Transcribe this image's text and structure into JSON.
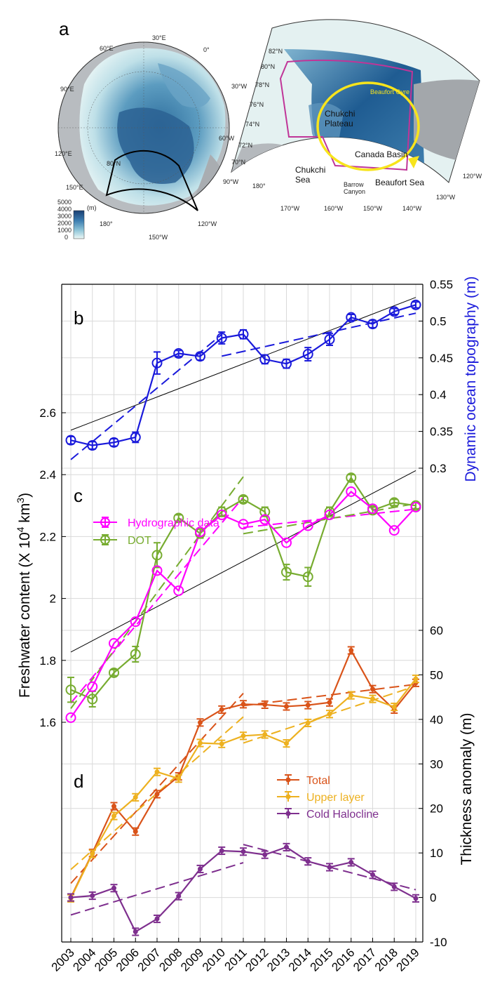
{
  "colors": {
    "blue": "#1a1adb",
    "magenta": "#ff00ff",
    "green": "#77ac30",
    "orange": "#d95319",
    "yellow": "#edb120",
    "purple": "#7e2f8e",
    "grid": "#d9d9d9"
  },
  "panel_a": {
    "letter": "a",
    "colorbar": {
      "unit": "(m)",
      "ticks": [
        "5000",
        "4000",
        "3000",
        "2000",
        "1000",
        "0"
      ]
    },
    "polar_labels": [
      "30°E",
      "60°E",
      "0°",
      "90°E",
      "30°W",
      "120°E",
      "60°W",
      "80°N",
      "150°E",
      "90°W",
      "180°",
      "120°W",
      "150°W"
    ],
    "regional_lat_labels": [
      "82°N",
      "80°N",
      "78°N",
      "76°N",
      "74°N",
      "72°N",
      "70°N"
    ],
    "regional_lon_labels": [
      "180°",
      "170°W",
      "160°W",
      "150°W",
      "140°W",
      "130°W",
      "120°W"
    ],
    "features": {
      "beaufort_gyre": "Beaufort Gyre",
      "chukchi_plateau_1": "Chukchi",
      "chukchi_plateau_2": "Plateau",
      "canada_basin": "Canada Basin",
      "chukchi_sea_1": "Chukchi",
      "chukchi_sea_2": "Sea",
      "barrow_canyon_1": "Barrow",
      "barrow_canyon_2": "Canyon",
      "beaufort_sea": "Beaufort Sea"
    }
  },
  "chart_data": [
    {
      "panel": "b",
      "type": "line",
      "x": [
        2003,
        2004,
        2005,
        2006,
        2007,
        2008,
        2009,
        2010,
        2011,
        2012,
        2013,
        2014,
        2015,
        2016,
        2017,
        2018,
        2019
      ],
      "ylabel": "Dynamic ocean topography (m)",
      "ylim": [
        0.3,
        0.55
      ],
      "yticks": [
        "0.3",
        "0.35",
        "0.4",
        "0.45",
        "0.5",
        "0.55"
      ],
      "series": [
        {
          "values": [
            0.338,
            0.331,
            0.335,
            0.342,
            0.443,
            0.456,
            0.452,
            0.477,
            0.482,
            0.448,
            0.442,
            0.455,
            0.475,
            0.505,
            0.496,
            0.513,
            0.522
          ],
          "errors": [
            0.005,
            0.005,
            0.005,
            0.007,
            0.015,
            0.004,
            0.005,
            0.008,
            0.006,
            0.006,
            0.006,
            0.009,
            0.008,
            0.004,
            0.005,
            0.004,
            0.004
          ]
        }
      ]
    },
    {
      "panel": "c",
      "type": "line",
      "x": [
        2003,
        2004,
        2005,
        2006,
        2007,
        2008,
        2009,
        2010,
        2011,
        2012,
        2013,
        2014,
        2015,
        2016,
        2017,
        2018,
        2019
      ],
      "ylabel": "Freshwater content (X 10",
      "ylabel_sup": "4",
      "ylabel_unit": " km",
      "ylabel_unit_sup": "3",
      "ylabel_end": ")",
      "ylim": [
        1.6,
        2.6
      ],
      "yticks": [
        "1.6",
        "1.8",
        "2",
        "2.2",
        "2.4",
        "2.6"
      ],
      "series": [
        {
          "name": "Hydrographic data",
          "values": [
            1.615,
            1.715,
            1.855,
            1.925,
            2.09,
            2.025,
            2.215,
            2.27,
            2.24,
            2.255,
            2.18,
            2.235,
            2.27,
            2.345,
            2.29,
            2.22,
            2.295
          ]
        },
        {
          "name": "DOT",
          "values": [
            1.705,
            1.675,
            1.76,
            1.82,
            2.14,
            2.26,
            2.21,
            2.28,
            2.32,
            2.28,
            2.085,
            2.07,
            2.28,
            2.39,
            2.285,
            2.31,
            2.3
          ],
          "errors": [
            0.04,
            0.025,
            0.01,
            0.025,
            0.04,
            0.01,
            0.015,
            0.015,
            0.01,
            0.015,
            0.025,
            0.03,
            0.015,
            0.01,
            0.01,
            0.01,
            0.01
          ]
        }
      ]
    },
    {
      "panel": "d",
      "type": "line",
      "x": [
        2003,
        2004,
        2005,
        2006,
        2007,
        2008,
        2009,
        2010,
        2011,
        2012,
        2013,
        2014,
        2015,
        2016,
        2017,
        2018,
        2019
      ],
      "xticklabels": [
        "2003",
        "2004",
        "2005",
        "2006",
        "2007",
        "2008",
        "2009",
        "2010",
        "2011",
        "2012",
        "2013",
        "2014",
        "2015",
        "2016",
        "2017",
        "2018",
        "2019"
      ],
      "ylabel": "Thickness anomaly (m)",
      "ylim": [
        -10,
        60
      ],
      "yticks": [
        "-10",
        "0",
        "10",
        "20",
        "30",
        "40",
        "50",
        "60"
      ],
      "series": [
        {
          "name": "Total",
          "values": [
            0,
            10,
            20.5,
            14.8,
            23.2,
            27.2,
            39.3,
            42.2,
            43.4,
            43.3,
            42.9,
            43.2,
            43.8,
            55.5,
            46.8,
            42.2,
            48.2
          ]
        },
        {
          "name": "Upper layer",
          "values": [
            -0.2,
            9.8,
            18.3,
            22.5,
            28.2,
            26.7,
            34.7,
            34.5,
            36.3,
            36.6,
            34.6,
            39.2,
            41.2,
            45.4,
            44.6,
            42.8,
            49.1
          ]
        },
        {
          "name": "Cold Halocline",
          "values": [
            0,
            0.4,
            2.1,
            -7.7,
            -4.8,
            0.3,
            6.4,
            10.5,
            10.3,
            9.6,
            11.3,
            8.1,
            6.8,
            7.9,
            5.1,
            2.4,
            -0.2
          ]
        }
      ]
    }
  ]
}
